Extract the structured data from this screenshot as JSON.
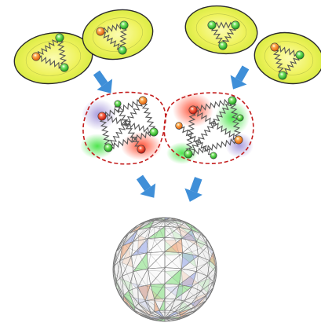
{
  "colors": {
    "cell_fill_light": "#f4f56a",
    "cell_fill_mid": "#d8ec3a",
    "cell_outline": "#2b2b2b",
    "node_green": "#3fcf3a",
    "node_orange": "#f08a1c",
    "node_red": "#e23a1e",
    "spring": "#555555",
    "arrow": "#3f8fd8",
    "fused_outline": "#c41e1e",
    "fused_fill_purple": "#a794d8",
    "fused_fill_green": "#9be37a",
    "sphere_wire": "#7a7a7a",
    "sphere_patch_orange": "#f0a070",
    "sphere_patch_green": "#7fe07a",
    "sphere_patch_blue": "#8fa0e8"
  },
  "icons": {
    "arrow": "down-arrow-icon",
    "node": "node-icon",
    "spring": "spring-icon"
  },
  "figure": {
    "stages": [
      "separate-pairs",
      "fused-pair",
      "sphere"
    ]
  }
}
